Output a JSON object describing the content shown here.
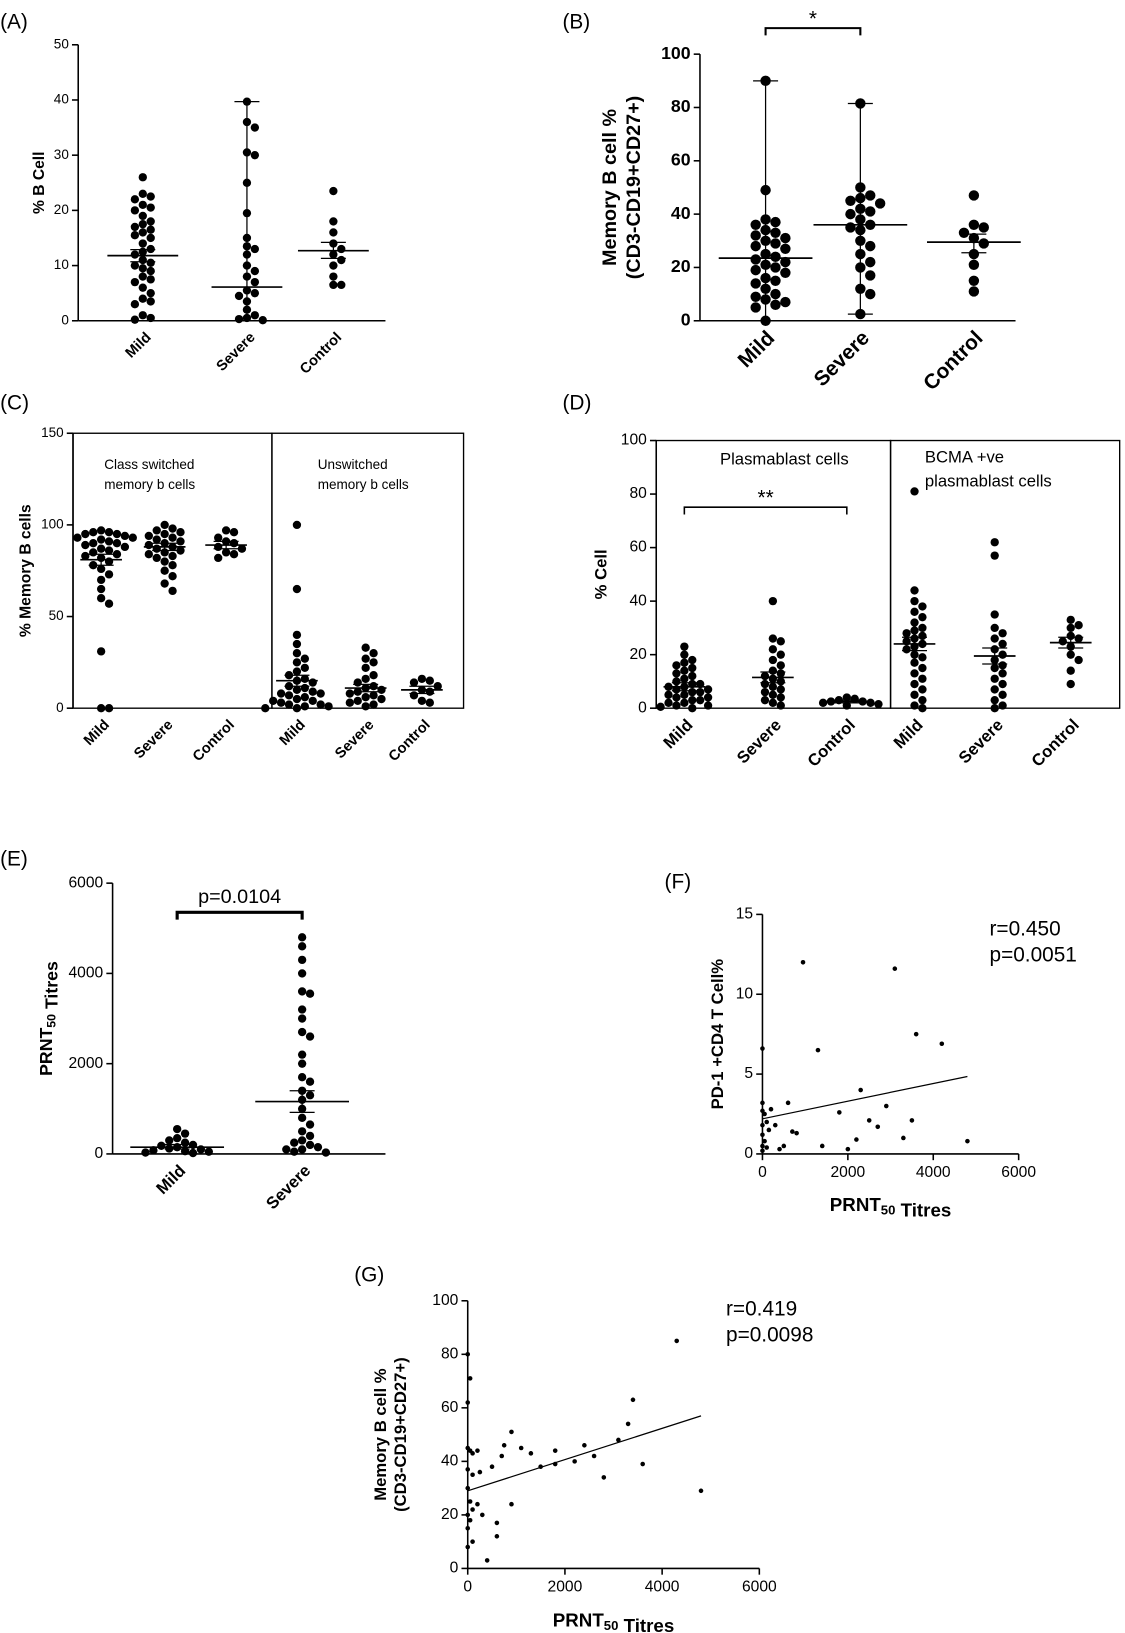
{
  "chart_data": [
    {
      "type": "strip",
      "panel": "(A)",
      "ylabel": [
        "% B Cell"
      ],
      "ylim": [
        0,
        50
      ],
      "yticks": [
        0,
        10,
        20,
        30,
        40,
        50
      ],
      "boxes": [
        {
          "categories": [
            "Mild",
            "Severe",
            "Control"
          ],
          "values": [
            [
              26,
              23,
              22.5,
              22,
              21,
              20.5,
              20,
              19,
              18,
              17.5,
              17,
              16.5,
              16,
              15.5,
              15,
              14,
              13,
              12.5,
              12,
              11,
              10.5,
              10,
              9.5,
              9,
              8,
              7.5,
              7,
              6,
              5,
              4,
              3.5,
              3,
              1,
              0.5,
              0.2
            ],
            [
              39.7,
              36,
              35,
              30.5,
              30,
              25,
              19.5,
              15,
              13.5,
              13,
              12,
              10,
              9,
              8,
              7,
              5.5,
              5,
              4.5,
              3.5,
              2,
              1,
              0.5,
              0.3,
              0.1
            ],
            [
              23.5,
              18,
              16,
              14,
              13,
              12,
              11,
              10,
              8,
              6.5,
              6.5
            ]
          ],
          "center": [
            11.8,
            6.1,
            12.7
          ],
          "err": [
            [
              10.7,
              12.9
            ],
            [
              0,
              39.7
            ],
            [
              11.3,
              14.2
            ]
          ]
        }
      ]
    },
    {
      "type": "strip",
      "panel": "(B)",
      "ylabel": [
        "Memory B cell %",
        "(CD3-CD19+CD27+)"
      ],
      "ylim": [
        0,
        100
      ],
      "yticks": [
        0,
        20,
        40,
        60,
        80,
        100
      ],
      "boxes": [
        {
          "categories": [
            "Mild",
            "Severe",
            "Control"
          ],
          "values": [
            [
              90,
              49,
              38,
              37,
              36,
              34,
              33,
              32,
              31,
              30,
              29,
              28,
              27,
              25,
              24,
              23,
              22,
              21,
              20,
              19,
              18,
              16,
              15,
              14,
              12,
              10,
              9,
              8,
              7,
              6,
              5,
              0
            ],
            [
              81.5,
              50,
              47,
              46,
              45,
              44,
              42,
              41,
              40,
              38,
              36,
              35,
              34,
              30,
              28,
              25,
              22,
              20,
              17,
              12,
              10,
              2.5
            ],
            [
              47,
              36,
              35,
              33,
              31,
              29,
              25,
              21,
              15,
              11
            ]
          ],
          "center": [
            23.5,
            36,
            29.5
          ],
          "err": [
            [
              0,
              90
            ],
            [
              2.5,
              81.5
            ],
            [
              25.5,
              32.5
            ]
          ],
          "bracket": {
            "between": [
              "Mild",
              "Severe"
            ],
            "label": "*"
          }
        }
      ]
    },
    {
      "type": "strip",
      "panel": "(C)",
      "ylabel": [
        "% Memory B cells"
      ],
      "ylim": [
        0,
        150
      ],
      "yticks": [
        0,
        50,
        100,
        150
      ],
      "boxes": [
        {
          "title": [
            "Class switched",
            "memory b cells"
          ],
          "categories": [
            "Mild",
            "Severe",
            "Control"
          ],
          "values": [
            [
              97,
              96,
              96,
              95,
              95,
              94,
              93,
              93,
              92,
              91,
              90,
              90,
              89,
              88,
              87,
              86,
              85,
              84,
              83,
              82,
              80,
              78,
              76,
              73,
              70,
              65,
              60,
              57,
              31,
              0,
              0
            ],
            [
              100,
              98,
              97,
              96,
              95,
              94,
              93,
              92,
              91,
              90,
              89,
              88,
              87,
              86,
              85,
              84,
              83,
              82,
              80,
              78,
              75,
              72,
              68,
              64
            ],
            [
              97,
              96,
              93,
              91,
              90,
              88,
              87,
              85,
              84,
              82
            ]
          ],
          "center": [
            81,
            88,
            89
          ],
          "err": [
            [
              78,
              84
            ],
            [
              86,
              90
            ],
            [
              87,
              91
            ]
          ]
        },
        {
          "title": [
            "Unswitched",
            "memory b cells"
          ],
          "categories": [
            "Mild",
            "Severe",
            "Control"
          ],
          "values": [
            [
              100,
              65,
              40,
              35,
              30,
              27,
              25,
              22,
              20,
              18,
              16,
              15,
              14,
              12,
              11,
              10,
              9,
              8,
              8,
              7,
              6,
              5,
              4,
              4,
              3,
              2,
              2,
              1,
              1,
              0,
              0
            ],
            [
              33,
              30,
              27,
              25,
              22,
              18,
              16,
              14,
              12,
              11,
              10,
              9,
              8,
              7,
              6,
              5,
              4,
              3,
              2,
              1
            ],
            [
              16,
              15,
              14,
              12,
              10,
              9,
              7,
              4,
              3
            ]
          ],
          "center": [
            15,
            11,
            10
          ],
          "err": [
            [
              12,
              18
            ],
            [
              9,
              13
            ],
            [
              8,
              12
            ]
          ]
        }
      ]
    },
    {
      "type": "strip",
      "panel": "(D)",
      "ylabel": [
        "% Cell"
      ],
      "ylim": [
        0,
        100
      ],
      "yticks": [
        0,
        20,
        40,
        60,
        80,
        100
      ],
      "boxes": [
        {
          "title": [
            "Plasmablast cells"
          ],
          "categories": [
            "Mild",
            "Severe",
            "Control"
          ],
          "values": [
            [
              23,
              20,
              18,
              17,
              16,
              15,
              14,
              13,
              12,
              11,
              10,
              9,
              9,
              8,
              8,
              7,
              7,
              6,
              6,
              5,
              5,
              4,
              4,
              3,
              3,
              2,
              2,
              1,
              1,
              0.5,
              0
            ],
            [
              40,
              26,
              25,
              22,
              20,
              18,
              16,
              14,
              13,
              12,
              11,
              10,
              9,
              8,
              7,
              6,
              5,
              4,
              3,
              2,
              1
            ],
            [
              4,
              3.5,
              3,
              2.5,
              2.5,
              2,
              2,
              1.5,
              1
            ]
          ],
          "center": [
            8,
            11.5,
            2.5
          ],
          "err": [
            [
              6.5,
              9.5
            ],
            [
              9.5,
              13.5
            ],
            [
              2,
              3
            ]
          ],
          "bracket": {
            "between": [
              "Mild",
              "Control"
            ],
            "label": "**"
          }
        },
        {
          "title": [
            "BCMA +ve",
            "plasmablast cells"
          ],
          "categories": [
            "Mild",
            "Severe",
            "Control"
          ],
          "values": [
            [
              81,
              44,
              40,
              38,
              36,
              34,
              32,
              30,
              29,
              28,
              27,
              26,
              25,
              24,
              23,
              22,
              20,
              19,
              17,
              15,
              13,
              11,
              9,
              7,
              5,
              3,
              1,
              0
            ],
            [
              62,
              57,
              35,
              30,
              28,
              26,
              24,
              22,
              20,
              18,
              16,
              15,
              13,
              11,
              9,
              7,
              5,
              3,
              1,
              0
            ],
            [
              33,
              31,
              30,
              27,
              26,
              25,
              23,
              20,
              18,
              14,
              9
            ]
          ],
          "center": [
            24,
            19.5,
            24.5
          ],
          "err": [
            [
              21.5,
              26.5
            ],
            [
              16.5,
              22.5
            ],
            [
              22.5,
              26.5
            ]
          ]
        }
      ]
    },
    {
      "type": "strip",
      "panel": "(E)",
      "ylabel": [
        [
          "PRNT",
          {
            "sub": "50"
          },
          " Titres"
        ]
      ],
      "ylim": [
        0,
        6000
      ],
      "yticks": [
        0,
        2000,
        4000,
        6000
      ],
      "boxes": [
        {
          "categories": [
            "Mild",
            "Severe"
          ],
          "values": [
            [
              550,
              450,
              350,
              300,
              250,
              200,
              180,
              150,
              120,
              100,
              80,
              60,
              50,
              30,
              20
            ],
            [
              4800,
              4600,
              4300,
              4000,
              3600,
              3550,
              3200,
              3000,
              2700,
              2600,
              2200,
              2000,
              1700,
              1600,
              1400,
              1300,
              1200,
              1000,
              800,
              650,
              500,
              400,
              300,
              250,
              200,
              150,
              100,
              100,
              50,
              30
            ]
          ],
          "center": [
            150,
            1160
          ],
          "err": [
            [
              110,
              210
            ],
            [
              920,
              1400
            ]
          ],
          "bracket": {
            "between": [
              "Mild",
              "Severe"
            ],
            "label": "p=0.0104"
          }
        }
      ]
    },
    {
      "type": "scatter",
      "panel": "(F)",
      "ylabel": [
        "PD-1 +CD4 T Cell%"
      ],
      "xlabel": [
        [
          "PRNT",
          {
            "sub": "50"
          },
          " Titres"
        ]
      ],
      "xlim": [
        0,
        6000
      ],
      "xticks": [
        0,
        2000,
        4000,
        6000
      ],
      "ylim": [
        0,
        15
      ],
      "yticks": [
        0,
        5,
        10,
        15
      ],
      "x": [
        0,
        0,
        50,
        0,
        0,
        0,
        0,
        100,
        150,
        200,
        50,
        100,
        300,
        500,
        600,
        700,
        800,
        950,
        1300,
        1400,
        1800,
        2000,
        2300,
        2500,
        2700,
        2900,
        3100,
        3300,
        3500,
        3600,
        4200,
        4800,
        2200,
        400,
        0
      ],
      "y": [
        6.6,
        3.2,
        2.5,
        1.8,
        1.2,
        0.5,
        0.2,
        2,
        1.5,
        2.8,
        0.8,
        0.4,
        1.8,
        0.5,
        3.2,
        1.4,
        1.3,
        12,
        6.5,
        0.5,
        2.6,
        0.3,
        4,
        2.1,
        1.7,
        3,
        11.6,
        1,
        2.1,
        7.5,
        6.9,
        0.8,
        0.9,
        0.3,
        2.7
      ],
      "fit": {
        "x": [
          0,
          4800
        ],
        "y": [
          2.2,
          4.85
        ]
      },
      "annotations": [
        "r=0.450",
        "p=0.0051"
      ]
    },
    {
      "type": "scatter",
      "panel": "(G)",
      "ylabel": [
        "Memory B cell %",
        "(CD3-CD19+CD27+)"
      ],
      "xlabel": [
        [
          "PRNT",
          {
            "sub": "50"
          },
          " Titres"
        ]
      ],
      "xlim": [
        0,
        6000
      ],
      "xticks": [
        0,
        2000,
        4000,
        6000
      ],
      "ylim": [
        0,
        100
      ],
      "yticks": [
        0,
        20,
        40,
        60,
        80,
        100
      ],
      "x": [
        0,
        50,
        0,
        0,
        50,
        100,
        0,
        100,
        0,
        50,
        100,
        0,
        50,
        0,
        100,
        0,
        200,
        300,
        400,
        500,
        600,
        600,
        700,
        750,
        900,
        900,
        1100,
        1300,
        1500,
        1800,
        1800,
        2200,
        2400,
        2600,
        2800,
        3100,
        3300,
        3400,
        3600,
        4300,
        4800,
        200,
        250
      ],
      "y": [
        80,
        71,
        62,
        45,
        44,
        43,
        37,
        35,
        30,
        25,
        22,
        20,
        18,
        15,
        10,
        8,
        24,
        20,
        3,
        38,
        17,
        12,
        42,
        46,
        51,
        24,
        45,
        43,
        38,
        39,
        44,
        40,
        46,
        42,
        34,
        48,
        54,
        63,
        39,
        85,
        29,
        44,
        36
      ],
      "fit": {
        "x": [
          0,
          4800
        ],
        "y": [
          29,
          57
        ]
      },
      "annotations": [
        "r=0.419",
        "p=0.0098"
      ]
    }
  ]
}
